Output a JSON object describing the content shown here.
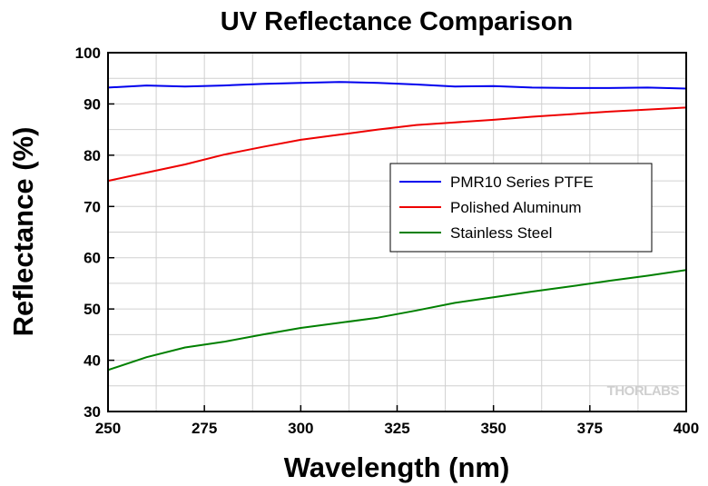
{
  "chart_data": {
    "type": "line",
    "title": "UV Reflectance Comparison",
    "xlabel": "Wavelength (nm)",
    "ylabel": "Reflectance (%)",
    "xlim": [
      250,
      400
    ],
    "ylim": [
      30,
      100
    ],
    "xticks": [
      "250",
      "275",
      "300",
      "325",
      "350",
      "375",
      "400"
    ],
    "yticks": [
      "30",
      "40",
      "50",
      "60",
      "70",
      "80",
      "90",
      "100"
    ],
    "xtick_values": [
      250,
      275,
      300,
      325,
      350,
      375,
      400
    ],
    "ytick_values": [
      30,
      40,
      50,
      60,
      70,
      80,
      90,
      100
    ],
    "x_minor_step": 12.5,
    "y_minor_step": 5,
    "grid": true,
    "legend_position": "right-middle",
    "watermark": "THORLABS",
    "series": [
      {
        "name": "PMR10 Series PTFE",
        "color": "#0000ee",
        "x": [
          250,
          260,
          270,
          280,
          290,
          300,
          310,
          320,
          330,
          340,
          350,
          360,
          370,
          380,
          390,
          400
        ],
        "y": [
          93.2,
          93.6,
          93.4,
          93.6,
          93.9,
          94.1,
          94.3,
          94.1,
          93.8,
          93.4,
          93.5,
          93.2,
          93.1,
          93.1,
          93.2,
          93.0
        ]
      },
      {
        "name": "Polished Aluminum",
        "color": "#ee0000",
        "x": [
          250,
          260,
          270,
          280,
          290,
          300,
          310,
          320,
          330,
          340,
          350,
          360,
          370,
          380,
          390,
          400
        ],
        "y": [
          75.0,
          76.6,
          78.2,
          80.1,
          81.6,
          83.0,
          84.0,
          85.0,
          85.9,
          86.4,
          86.9,
          87.5,
          88.0,
          88.5,
          88.9,
          89.3
        ]
      },
      {
        "name": "Stainless Steel",
        "color": "#008000",
        "x": [
          250,
          260,
          270,
          280,
          290,
          300,
          310,
          320,
          330,
          340,
          350,
          360,
          370,
          380,
          390,
          400
        ],
        "y": [
          38.1,
          40.6,
          42.5,
          43.6,
          45.0,
          46.3,
          47.3,
          48.3,
          49.7,
          51.2,
          52.3,
          53.4,
          54.4,
          55.5,
          56.5,
          57.6
        ]
      }
    ]
  }
}
